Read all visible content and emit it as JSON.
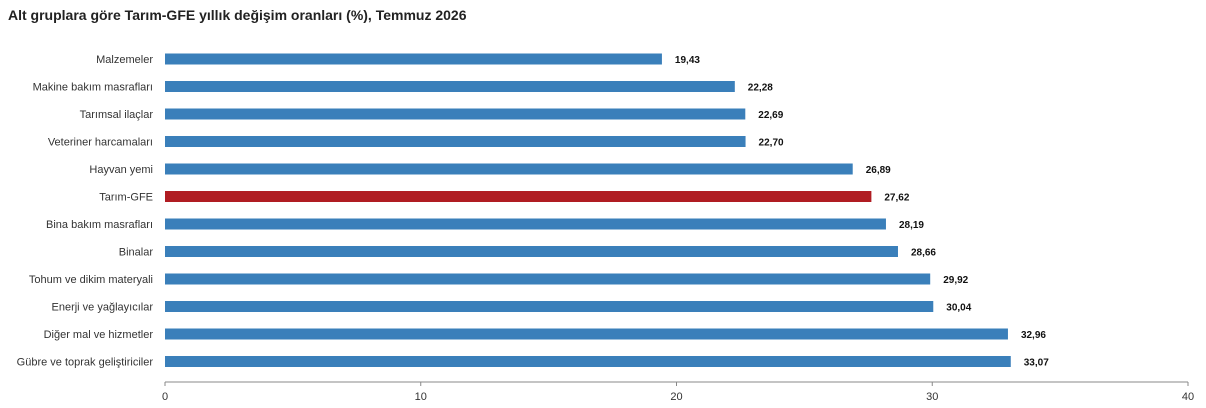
{
  "chart_data": {
    "type": "bar",
    "orientation": "horizontal",
    "title": "Alt gruplara göre Tarım-GFE yıllık değişim oranları (%), Temmuz 2026",
    "categories": [
      "Malzemeler",
      "Makine bakım masrafları",
      "Tarımsal ilaçlar",
      "Veteriner harcamaları",
      "Hayvan yemi",
      "Tarım-GFE",
      "Bina bakım masrafları",
      "Binalar",
      "Tohum ve dikim materyali",
      "Enerji  ve yağlayıcılar",
      "Diğer mal ve hizmetler",
      "Gübre ve toprak geliştiriciler"
    ],
    "values": [
      19.43,
      22.28,
      22.69,
      22.7,
      26.89,
      27.62,
      28.19,
      28.66,
      29.92,
      30.04,
      32.96,
      33.07
    ],
    "value_labels": [
      "19,43",
      "22,28",
      "22,69",
      "22,70",
      "26,89",
      "27,62",
      "28,19",
      "28,66",
      "29,92",
      "30,04",
      "32,96",
      "33,07"
    ],
    "highlight": "Tarım-GFE",
    "xlim": [
      0,
      40
    ],
    "xticks": [
      0,
      10,
      20,
      30,
      40
    ],
    "grid": false,
    "legend": "none",
    "colors": {
      "bar": "#3a7fba",
      "highlight": "#b01c22",
      "axis": "#888888"
    }
  }
}
